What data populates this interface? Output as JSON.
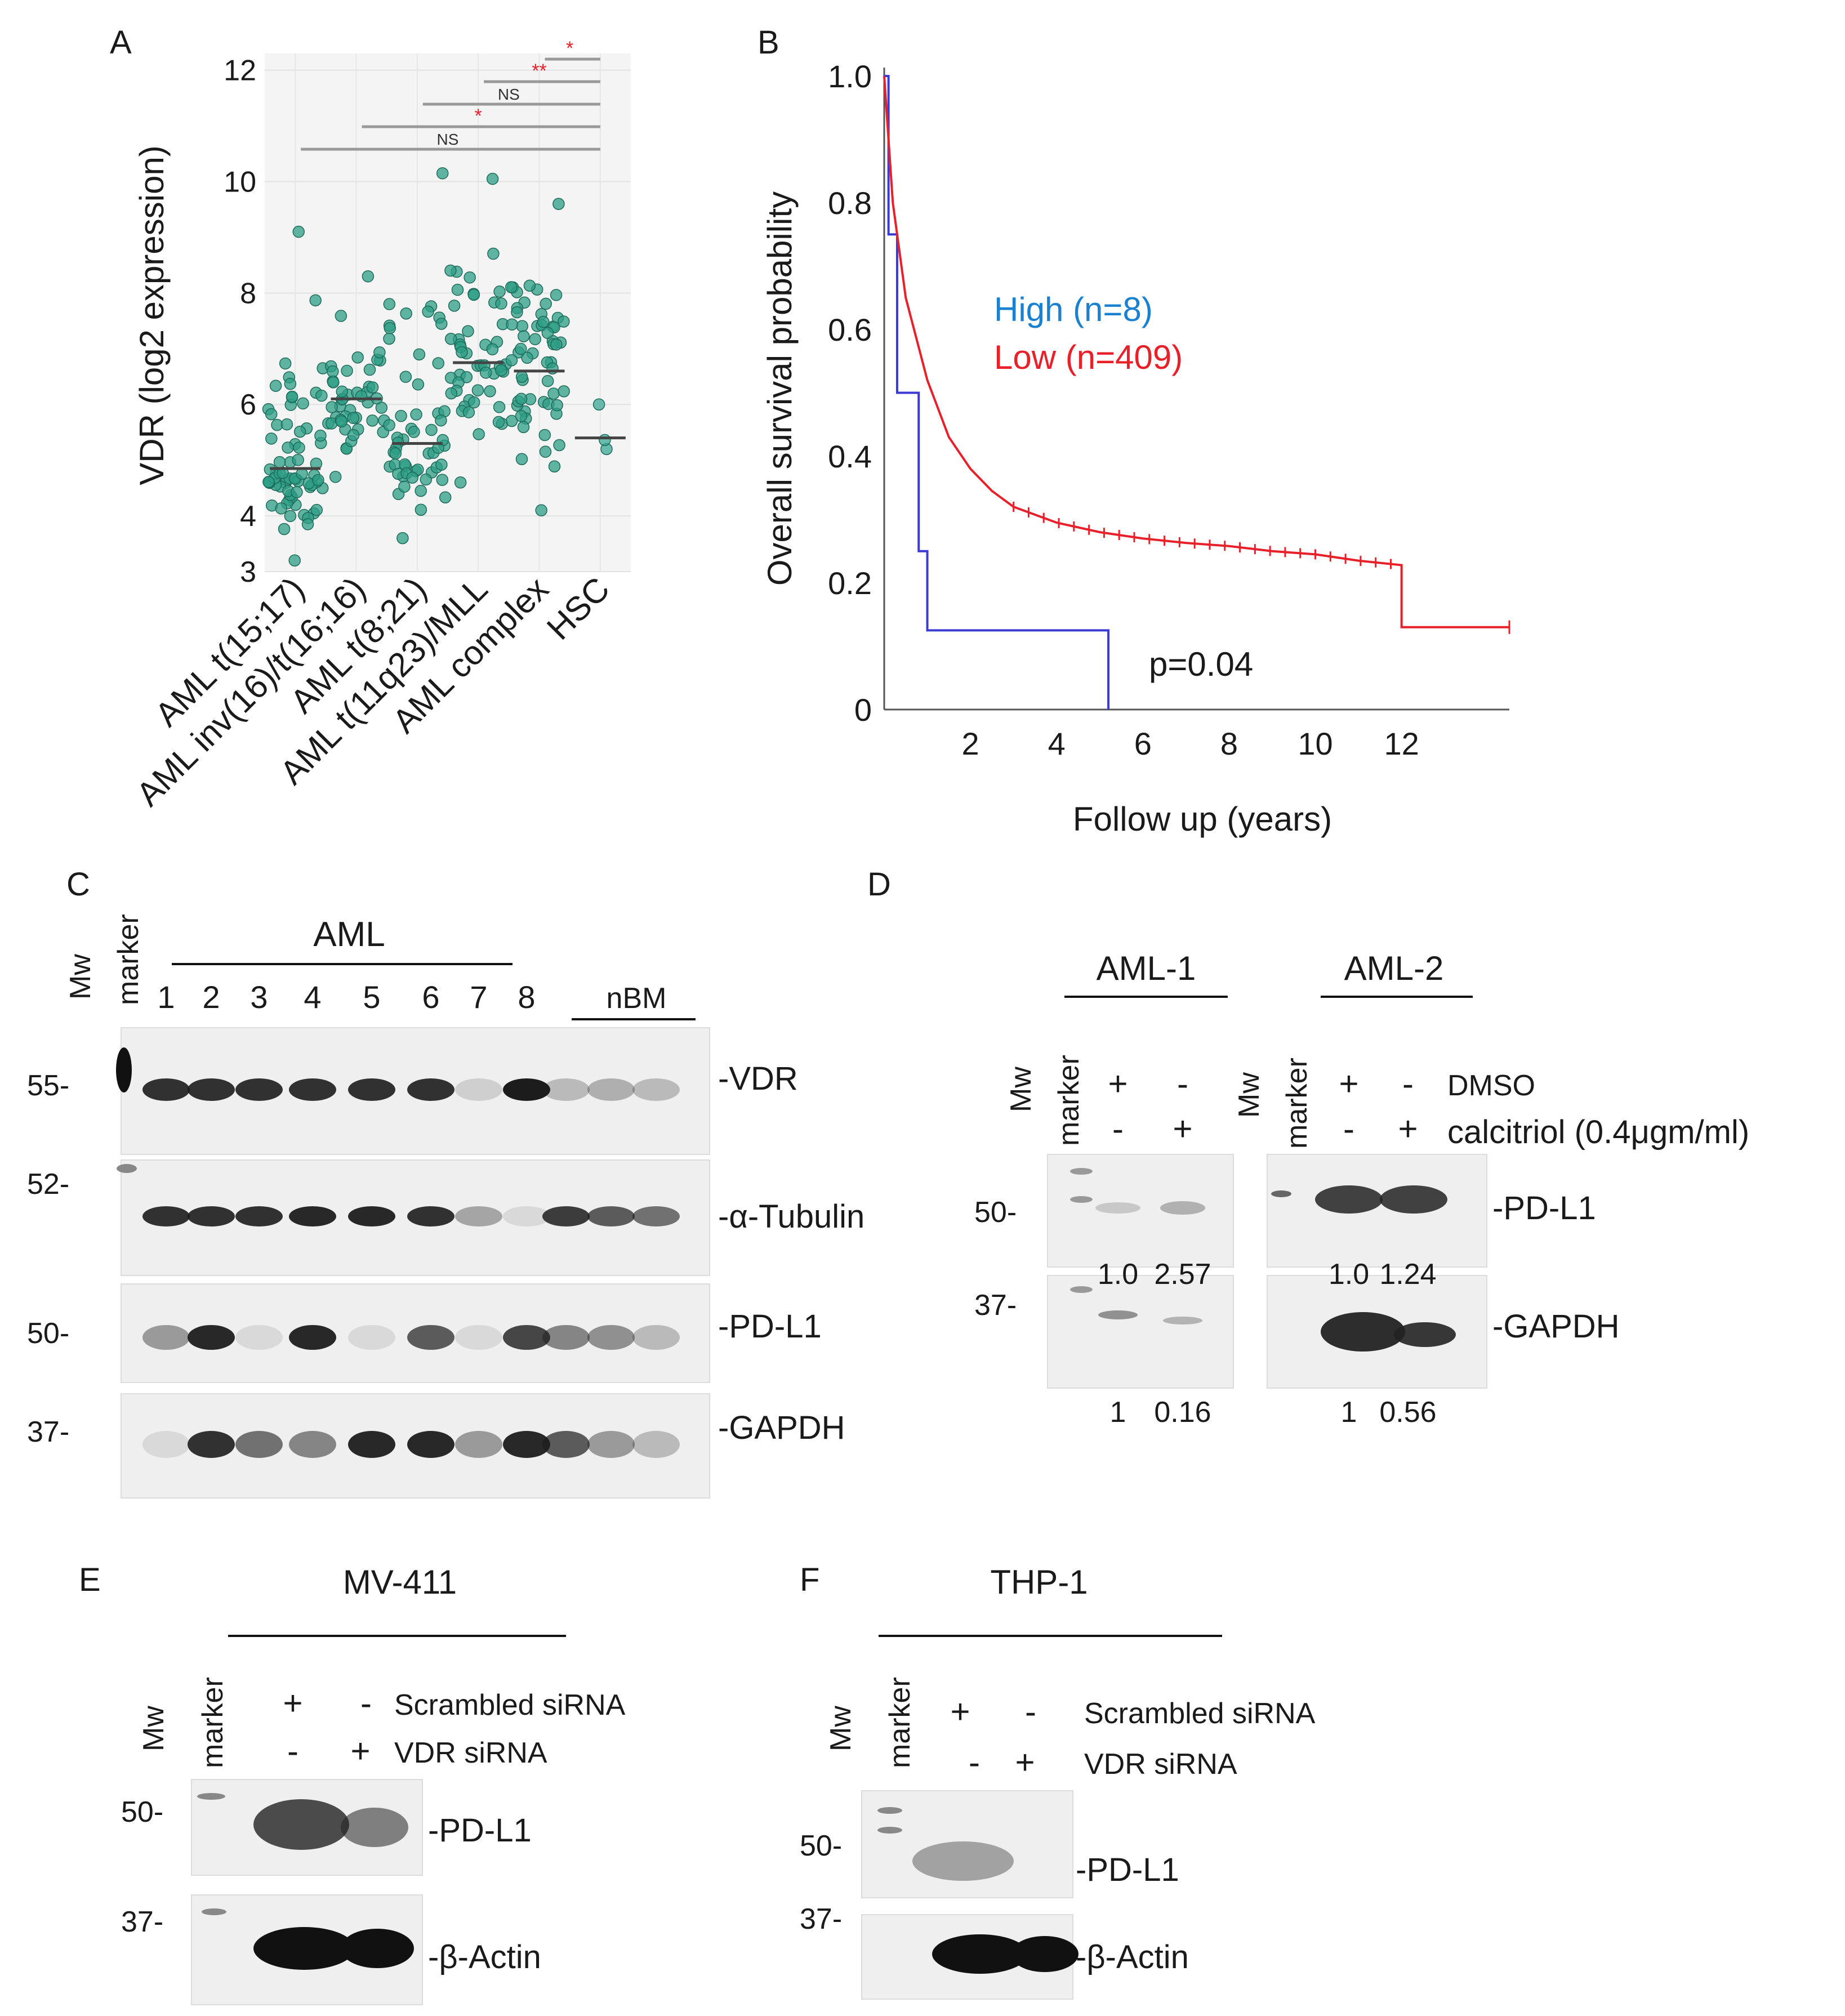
{
  "panels": {
    "A": {
      "label": "A",
      "ylabel": "VDR (log2 expression)",
      "yticks": [
        "3",
        "4",
        "6",
        "8",
        "10",
        "12"
      ],
      "categories": [
        "AML t(15;17)",
        "AML inv(16)/t(16;16)",
        "AML t(8;21)",
        "AML t(11q23)/MLL",
        "AML complex",
        "HSC"
      ],
      "sig": [
        "*",
        "**",
        "NS",
        "*",
        "NS"
      ]
    },
    "B": {
      "label": "B",
      "ylabel": "Overall survival probability",
      "xlabel": "Follow up (years)",
      "yticks": [
        "1.0",
        "0.8",
        "0.6",
        "0.4",
        "0.2",
        "0"
      ],
      "xticks": [
        "2",
        "4",
        "6",
        "8",
        "10",
        "12"
      ],
      "legend_high": "High (n=8)",
      "legend_low": "Low (n=409)",
      "pvalue": "p=0.04"
    },
    "C": {
      "label": "C",
      "mw": "Mw",
      "marker": "marker",
      "group1": "AML",
      "group2": "nBM",
      "lanes": [
        "1",
        "2",
        "3",
        "4",
        "5",
        "6",
        "7",
        "8"
      ],
      "rows": [
        {
          "mw": "55-",
          "name": "-VDR"
        },
        {
          "mw": "52-",
          "name": "-α-Tubulin"
        },
        {
          "mw": "50-",
          "name": "-PD-L1"
        },
        {
          "mw": "37-",
          "name": "-GAPDH"
        }
      ]
    },
    "D": {
      "label": "D",
      "left_title": "AML-1",
      "right_title": "AML-2",
      "mw": "Mw",
      "marker": "marker",
      "plus": "+",
      "minus": "-",
      "row1": "DMSO",
      "row2": "calcitriol (0.4μgm/ml)",
      "mw50": "50-",
      "mw37": "37-",
      "pdl1": "-PD-L1",
      "gapdh": "-GAPDH",
      "aml1_pd": [
        "1.0",
        "2.57"
      ],
      "aml1_g": [
        "1",
        "0.16"
      ],
      "aml2_pd": [
        "1.0",
        "1.24"
      ],
      "aml2_g": [
        "1",
        "0.56"
      ]
    },
    "E": {
      "label": "E",
      "title": "MV-411",
      "mw": "Mw",
      "marker": "marker",
      "row1": "Scrambled siRNA",
      "row2": "VDR siRNA",
      "mw50": "50-",
      "mw37": "37-",
      "pdl1": "-PD-L1",
      "actin": "-β-Actin",
      "plus": "+",
      "minus": "-"
    },
    "F": {
      "label": "F",
      "title": "THP-1",
      "mw": "Mw",
      "marker": "marker",
      "row1": "Scrambled siRNA",
      "row2": "VDR siRNA",
      "mw50": "50-",
      "mw37": "37-",
      "pdl1": "-PD-L1",
      "actin": "-β-Actin",
      "plus": "+",
      "minus": "-"
    }
  },
  "chart_data": [
    {
      "type": "scatter",
      "title": "",
      "xlabel": "",
      "ylabel": "VDR (log2 expression)",
      "ylim": [
        3,
        12.3
      ],
      "categories": [
        "AML t(15;17)",
        "AML inv(16)/t(16;16)",
        "AML t(8;21)",
        "AML t(11q23)/MLL",
        "AML complex",
        "HSC"
      ],
      "medians": [
        4.85,
        6.1,
        5.3,
        6.75,
        6.6,
        5.4
      ],
      "ranges": [
        [
          3.2,
          9.1
        ],
        [
          4.7,
          8.3
        ],
        [
          3.6,
          10.15
        ],
        [
          4.6,
          10.05
        ],
        [
          4.1,
          9.6
        ],
        [
          5.2,
          6.0
        ]
      ],
      "n": [
        70,
        45,
        55,
        50,
        60,
        3
      ]
    },
    {
      "type": "line",
      "title": "",
      "xlabel": "Follow up (years)",
      "ylabel": "Overall survival probability",
      "xlim": [
        0,
        14.5
      ],
      "ylim": [
        0,
        1.0
      ],
      "series": [
        {
          "name": "High (n=8)",
          "color": "#3b3bd4",
          "x": [
            0,
            0.1,
            0.1,
            0.3,
            0.3,
            0.8,
            0.8,
            1.0,
            1.0,
            5.2,
            5.2
          ],
          "y": [
            1.0,
            1.0,
            0.75,
            0.75,
            0.5,
            0.5,
            0.25,
            0.25,
            0.125,
            0.125,
            0
          ]
        },
        {
          "name": "Low (n=409)",
          "color": "#e8202a",
          "x": [
            0,
            0.2,
            0.5,
            1.0,
            1.5,
            2.0,
            2.5,
            3.0,
            4.0,
            5.0,
            6.0,
            7.0,
            8.0,
            9.0,
            10.0,
            11.0,
            12.0,
            12.0,
            14.5
          ],
          "y": [
            1.0,
            0.8,
            0.65,
            0.52,
            0.43,
            0.38,
            0.345,
            0.32,
            0.295,
            0.28,
            0.27,
            0.263,
            0.258,
            0.25,
            0.245,
            0.235,
            0.228,
            0.13,
            0.13
          ]
        }
      ]
    }
  ]
}
